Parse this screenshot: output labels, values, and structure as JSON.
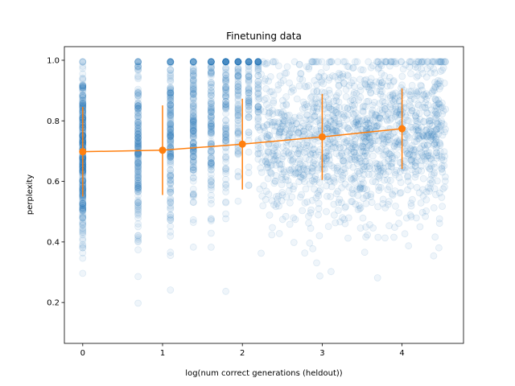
{
  "chart_data": {
    "type": "scatter",
    "title": "Finetuning data",
    "xlabel": "log(num correct generations (heldout))",
    "ylabel": "perplexity",
    "xlim": [
      -0.23,
      4.77
    ],
    "ylim": [
      0.065,
      1.045
    ],
    "xticks": [
      "0",
      "1",
      "2",
      "3",
      "4"
    ],
    "yticks": [
      "0.2",
      "0.4",
      "0.6",
      "0.8",
      "1.0"
    ],
    "grid": false,
    "colors": {
      "scatter": "#1f77b4",
      "line": "#ff7f0e"
    },
    "scatter_note": "dense translucent point cloud; bands at log(1..6)=0, 0.69, 1.10, 1.39, 1.61, 1.79, then continuous to ~4.5",
    "scatter_bands": [
      0,
      0.693,
      1.099,
      1.386,
      1.609,
      1.792,
      1.946,
      2.079,
      2.197
    ],
    "scatter_x_max": 4.55,
    "series": [
      {
        "type": "line-errorbar",
        "x": [
          0,
          1,
          2,
          3,
          4
        ],
        "y": [
          0.698,
          0.703,
          0.723,
          0.747,
          0.774
        ],
        "yerr": [
          0.148,
          0.148,
          0.15,
          0.142,
          0.133
        ]
      }
    ]
  }
}
